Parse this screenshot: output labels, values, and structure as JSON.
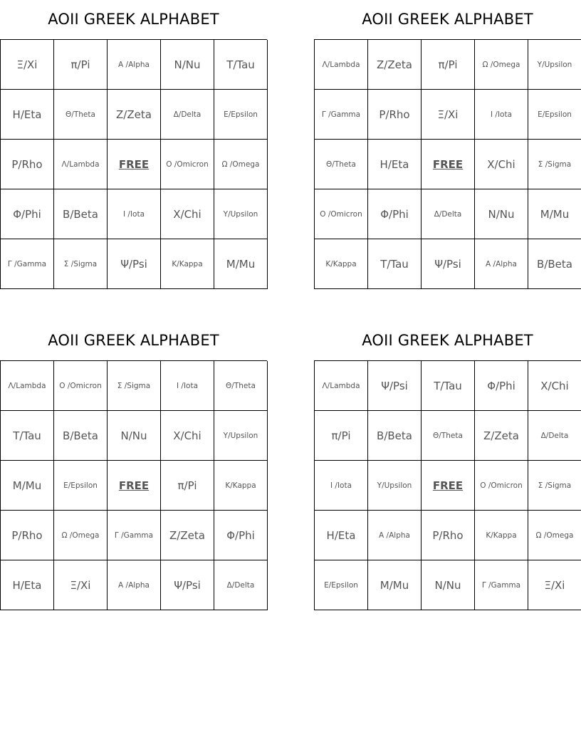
{
  "cards": [
    {
      "title": "AOII GREEK ALPHABET",
      "cells": [
        "Ξ/Xi",
        "π/Pi",
        "Α /Alpha",
        "Ν/Nu",
        "Τ/Tau",
        "Η/Eta",
        "Θ/Theta",
        "Ζ/Zeta",
        "Δ/Delta",
        "Ε/Epsilon",
        "Ρ/Rho",
        "Λ/Lambda",
        "FREE",
        "Ο /Omicron",
        "Ω /Omega",
        "Φ/Phi",
        "Β/Beta",
        "Ι /Iota",
        "Χ/Chi",
        "Υ/Upsilon",
        "Γ /Gamma",
        "Σ /Sigma",
        "Ψ/Psi",
        "Κ/Kappa",
        "Μ/Mu"
      ]
    },
    {
      "title": "AOII GREEK ALPHABET",
      "cells": [
        "Λ/Lambda",
        "Ζ/Zeta",
        "π/Pi",
        "Ω /Omega",
        "Υ/Upsilon",
        "Γ /Gamma",
        "Ρ/Rho",
        "Ξ/Xi",
        "Ι /Iota",
        "Ε/Epsilon",
        "Θ/Theta",
        "Η/Eta",
        "FREE",
        "Χ/Chi",
        "Σ /Sigma",
        "Ο /Omicron",
        "Φ/Phi",
        "Δ/Delta",
        "Ν/Nu",
        "Μ/Mu",
        "Κ/Kappa",
        "Τ/Tau",
        "Ψ/Psi",
        "Α /Alpha",
        "Β/Beta"
      ]
    },
    {
      "title": "AOII GREEK ALPHABET",
      "cells": [
        "Λ/Lambda",
        "Ο /Omicron",
        "Σ /Sigma",
        "Ι /Iota",
        "Θ/Theta",
        "Τ/Tau",
        "Β/Beta",
        "Ν/Nu",
        "Χ/Chi",
        "Υ/Upsilon",
        "Μ/Mu",
        "Ε/Epsilon",
        "FREE",
        "π/Pi",
        "Κ/Kappa",
        "Ρ/Rho",
        "Ω /Omega",
        "Γ /Gamma",
        "Ζ/Zeta",
        "Φ/Phi",
        "Η/Eta",
        "Ξ/Xi",
        "Α /Alpha",
        "Ψ/Psi",
        "Δ/Delta"
      ]
    },
    {
      "title": "AOII GREEK ALPHABET",
      "cells": [
        "Λ/Lambda",
        "Ψ/Psi",
        "Τ/Tau",
        "Φ/Phi",
        "Χ/Chi",
        "π/Pi",
        "Β/Beta",
        "Θ/Theta",
        "Ζ/Zeta",
        "Δ/Delta",
        "Ι /Iota",
        "Υ/Upsilon",
        "FREE",
        "Ο /Omicron",
        "Σ /Sigma",
        "Η/Eta",
        "Α /Alpha",
        "Ρ/Rho",
        "Κ/Kappa",
        "Ω /Omega",
        "Ε/Epsilon",
        "Μ/Mu",
        "Ν/Nu",
        "Γ /Gamma",
        "Ξ/Xi"
      ]
    }
  ]
}
